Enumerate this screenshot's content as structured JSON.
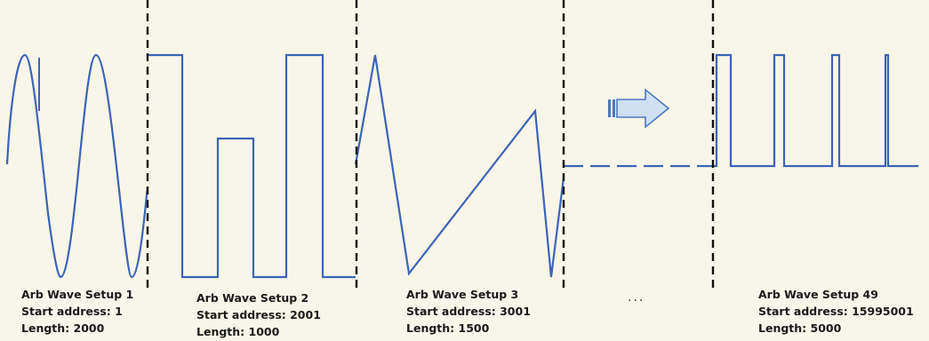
{
  "setups": [
    {
      "title": "Arb Wave Setup 1",
      "start": "Start address: 1",
      "length": "Length: 2000"
    },
    {
      "title": "Arb Wave Setup 2",
      "start": "Start address: 2001",
      "length": "Length: 1000"
    },
    {
      "title": "Arb Wave Setup 3",
      "start": "Start address: 3001",
      "length": "Length: 1500"
    },
    {
      "title": "Arb Wave Setup 49",
      "start": "Start address: 15995001",
      "length": "Length: 5000"
    }
  ],
  "ellipsis": "...",
  "colors": {
    "wave": "#3d63b8",
    "divider": "#111111",
    "arrow_fill": "#cfe0f3",
    "arrow_stroke": "#4a78c0",
    "background": "#f8f6e8"
  },
  "icons": {
    "continuation": "right-arrow-icon"
  }
}
